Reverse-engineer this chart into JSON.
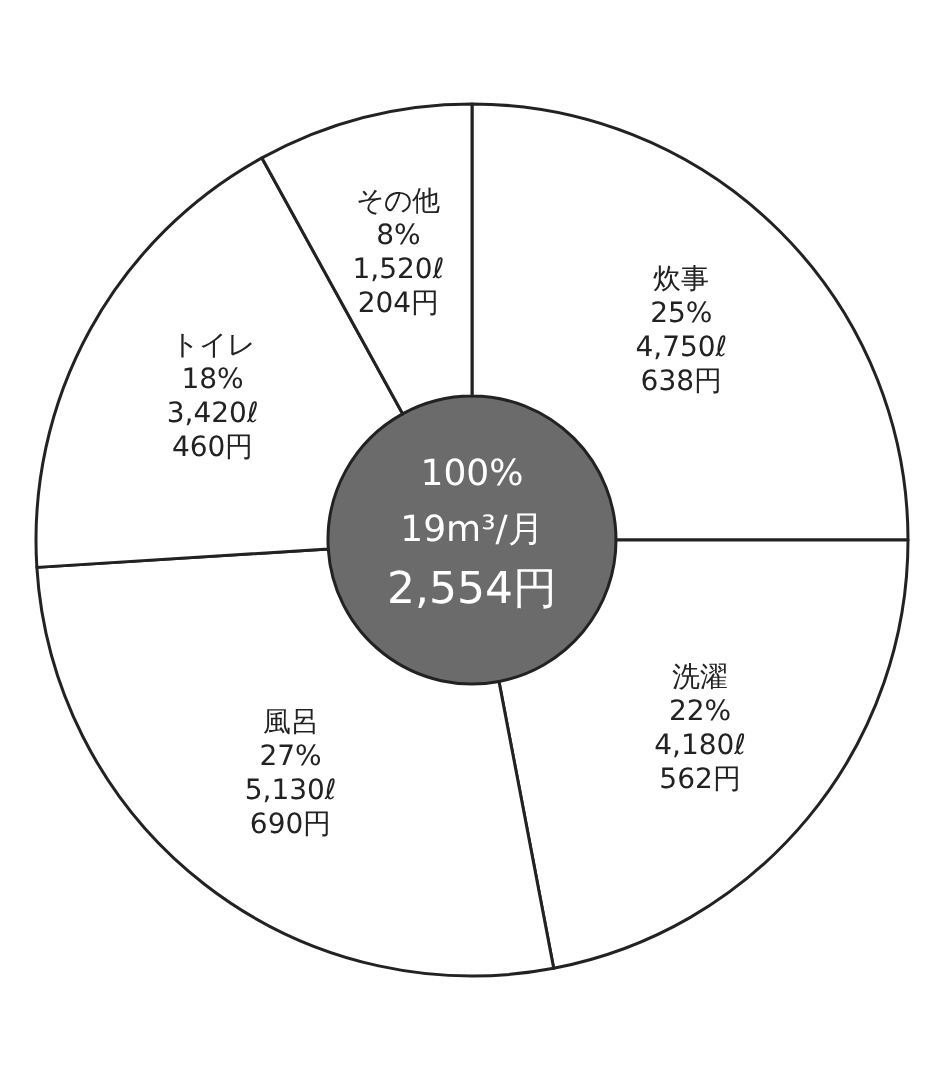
{
  "chart_data": {
    "type": "donut",
    "categories": [
      "炊事",
      "洗濯",
      "風呂",
      "トイレ",
      "その他"
    ],
    "values": [
      25,
      22,
      27,
      18,
      8
    ],
    "colors": [
      "#ffffff",
      "#ffffff",
      "#ffffff",
      "#ffffff",
      "#ffffff"
    ],
    "value_labels": [
      "25%\n4,750ℓ\n638円",
      "22%\n4,180ℓ\n562円",
      "27%\n5,130ℓ\n690円",
      "18%\n3,420ℓ\n460円",
      "8%\n1,520ℓ\n204円"
    ],
    "annotations": [
      "100%",
      "19m³/月",
      "2,554円"
    ],
    "legend": false
  }
}
